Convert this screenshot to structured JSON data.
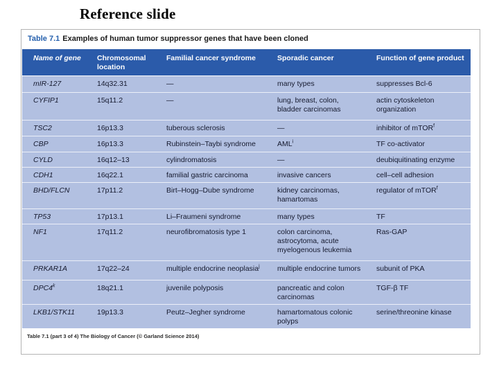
{
  "page": {
    "title": "Reference slide"
  },
  "table": {
    "title_label": "Table 7.1",
    "title_text": "Examples of human tumor suppressor genes that have been cloned",
    "columns": [
      "Name of gene",
      "Chromosomal location",
      "Familial cancer syndrome",
      "Sporadic cancer",
      "Function of gene product"
    ],
    "rows": [
      {
        "gene": "mIR-127",
        "location": "14q32.31",
        "familial": "—",
        "sporadic": "many types",
        "function": "suppresses Bcl-6"
      },
      {
        "gene": "CYFIP1",
        "location": "15q11.2",
        "familial": "—",
        "sporadic": "lung, breast, colon, bladder carcinomas",
        "function": "actin cytoskeleton organization"
      },
      {
        "gene": "TSC2",
        "location": "16p13.3",
        "familial": "tuberous sclerosis",
        "sporadic": "—",
        "function": "inhibitor of mTOR",
        "function_sup": "f"
      },
      {
        "gene": "CBP",
        "location": "16p13.3",
        "familial": "Rubinstein–Taybi syndrome",
        "sporadic": "AML",
        "sporadic_sup": "i",
        "function": "TF co-activator"
      },
      {
        "gene": "CYLD",
        "location": "16q12–13",
        "familial": "cylindromatosis",
        "sporadic": "—",
        "function": "deubiquitinating enzyme"
      },
      {
        "gene": "CDH1",
        "location": "16q22.1",
        "familial": "familial gastric carcinoma",
        "sporadic": "invasive cancers",
        "function": "cell–cell adhesion"
      },
      {
        "gene": "BHD/FLCN",
        "location": "17p11.2",
        "familial": "Birt–Hogg–Dube syndrome",
        "sporadic": "kidney carcinomas, hamartomas",
        "function": "regulator of mTOR",
        "function_sup": "f"
      },
      {
        "gene": "TP53",
        "location": "17p13.1",
        "familial": "Li–Fraumeni syndrome",
        "sporadic": "many types",
        "function": "TF"
      },
      {
        "gene": "NF1",
        "location": "17q11.2",
        "familial": "neurofibromatosis type 1",
        "sporadic": "colon carcinoma, astrocytoma, acute myelogenous leukemia",
        "function": "Ras-GAP"
      },
      {
        "gene": "PRKAR1A",
        "location": "17q22–24",
        "familial": "multiple endocrine neoplasia",
        "familial_sup": "j",
        "sporadic": "multiple endocrine tumors",
        "function": "subunit of PKA"
      },
      {
        "gene": "DPC4",
        "gene_sup": "k",
        "location": "18q21.1",
        "familial": "juvenile polyposis",
        "sporadic": "pancreatic and colon carcinomas",
        "function": "TGF-β TF"
      },
      {
        "gene": "LKB1/STK11",
        "location": "19p13.3",
        "familial": "Peutz–Jegher syndrome",
        "sporadic": "hamartomatous colonic polyps",
        "function": "serine/threonine kinase"
      }
    ],
    "caption": "Table 7.1 (part 3 of 4) The Biology of Cancer (© Garland Science 2014)"
  },
  "colors": {
    "header_bg": "#2b5baa",
    "body_bg": "#b2c0e1",
    "title_accent": "#2560ad"
  }
}
